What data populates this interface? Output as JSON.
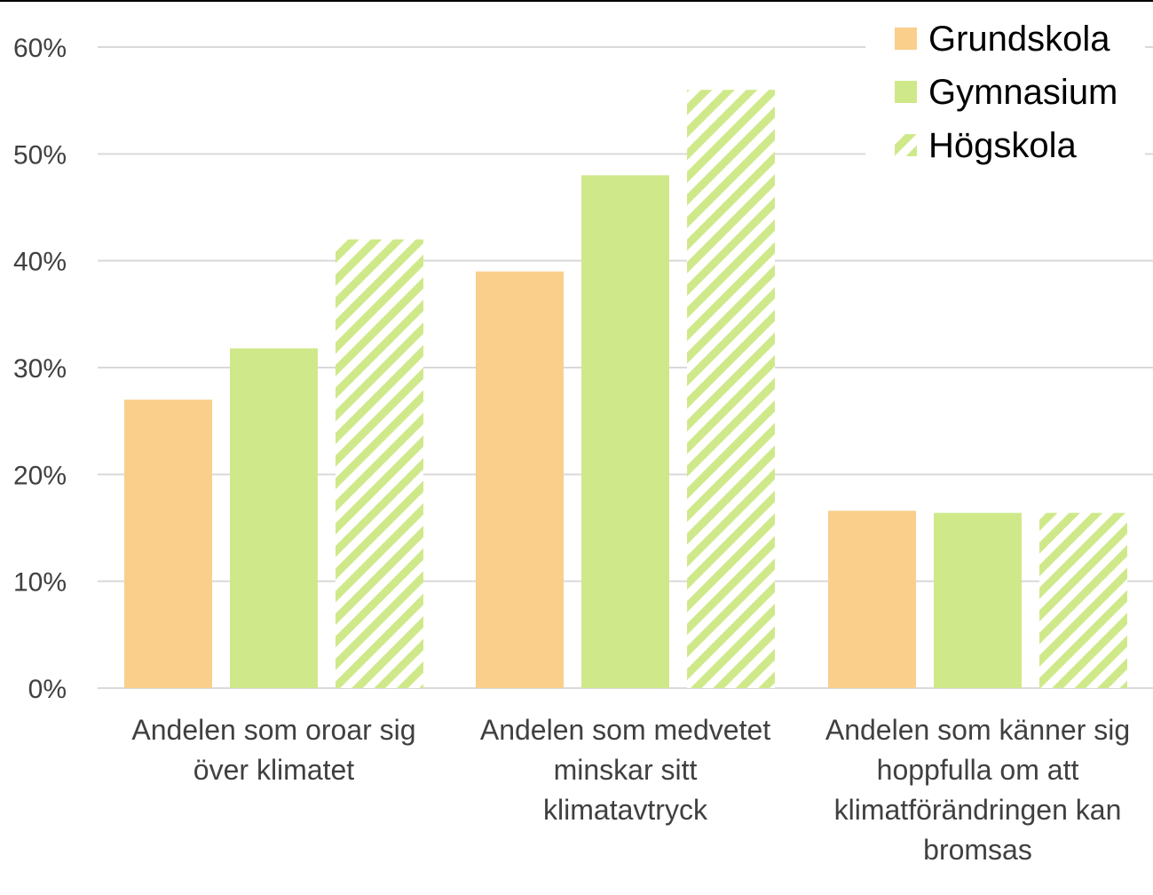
{
  "chart_data": {
    "type": "bar",
    "categories": [
      [
        "Andelen som oroar sig",
        "över klimatet"
      ],
      [
        "Andelen som medvetet",
        "minskar sitt",
        "klimatavtryck"
      ],
      [
        "Andelen som känner sig",
        "hoppfulla om att",
        "klimatförändringen kan",
        "bromsas"
      ]
    ],
    "series": [
      {
        "name": "Grundskola",
        "values": [
          27,
          39,
          16.6
        ],
        "color": "#f9cf8b",
        "pattern": "solid"
      },
      {
        "name": "Gymnasium",
        "values": [
          31.8,
          48,
          16.4
        ],
        "color": "#cfe98a",
        "pattern": "solid"
      },
      {
        "name": "Högskola",
        "values": [
          42,
          56,
          16.4
        ],
        "color": "#cfe98a",
        "pattern": "diagonal-stripes"
      }
    ],
    "y_ticks": [
      "0%",
      "10%",
      "20%",
      "30%",
      "40%",
      "50%",
      "60%"
    ],
    "ylim": [
      0,
      60
    ],
    "grid": true,
    "legend_position": "top-right",
    "title": "",
    "xlabel": "",
    "ylabel": ""
  }
}
